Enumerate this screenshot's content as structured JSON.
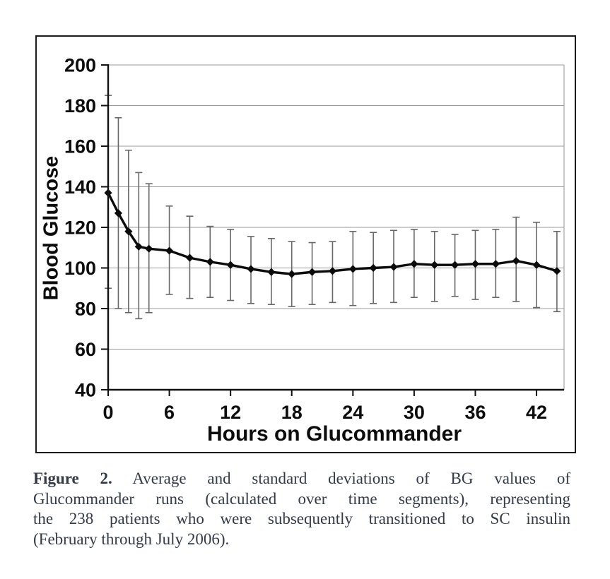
{
  "chart_data": {
    "type": "line",
    "title": "",
    "xlabel": "Hours on Glucommander",
    "ylabel": "Blood Glucose",
    "x": [
      0,
      1,
      2,
      3,
      4,
      6,
      8,
      10,
      12,
      14,
      16,
      18,
      20,
      22,
      24,
      26,
      28,
      30,
      32,
      34,
      36,
      38,
      40,
      42,
      44
    ],
    "series": [
      {
        "name": "Average BG",
        "values": [
          137,
          127,
          118,
          110.5,
          109.5,
          108.5,
          105,
          103,
          101.5,
          99.5,
          98,
          97,
          98,
          98.5,
          99.5,
          100,
          100.5,
          102,
          101.5,
          101.5,
          102,
          102,
          103.5,
          101.5,
          98.5
        ]
      }
    ],
    "error_upper": [
      185,
      174,
      158,
      147,
      141.5,
      130.5,
      125.5,
      120.5,
      119,
      115.5,
      114.5,
      113,
      112.5,
      113,
      118,
      117.5,
      118.5,
      119,
      118,
      116.5,
      118.5,
      119,
      125,
      122.5,
      118
    ],
    "error_lower": [
      90,
      80,
      78,
      75,
      78,
      87,
      85,
      85.5,
      84,
      82.5,
      82,
      81,
      82,
      83,
      81.5,
      82.5,
      83,
      85.5,
      83.5,
      86,
      84.5,
      85.5,
      83.5,
      80.5,
      78.5
    ],
    "xticks": [
      0,
      6,
      12,
      18,
      24,
      30,
      36,
      42
    ],
    "yticks": [
      40,
      60,
      80,
      100,
      120,
      140,
      160,
      180,
      200
    ],
    "xlim": [
      0,
      44.7
    ],
    "ylim": [
      40,
      200
    ],
    "grid": "horizontal",
    "legend": "none",
    "marker": "diamond",
    "error_bars": "vertical-with-caps",
    "colors": {
      "line": "#0b0b0b",
      "marker": "#0b0b0b",
      "error_bar": "#686868",
      "gridline": "#9b9b9b",
      "axis": "#111111",
      "tick_label": "#0d0d0d",
      "caption_text": "#323b47",
      "figure_border": "#1b1b1b",
      "background": "#ffffff"
    }
  },
  "caption": {
    "label": "Figure 2.",
    "line1": "Average and standard deviations of BG values of",
    "line2": "Glucommander runs (calculated over time segments), representing",
    "line3": "the 238 patients who were subsequently transitioned to SC insulin",
    "line4": "(February through July 2006)."
  }
}
